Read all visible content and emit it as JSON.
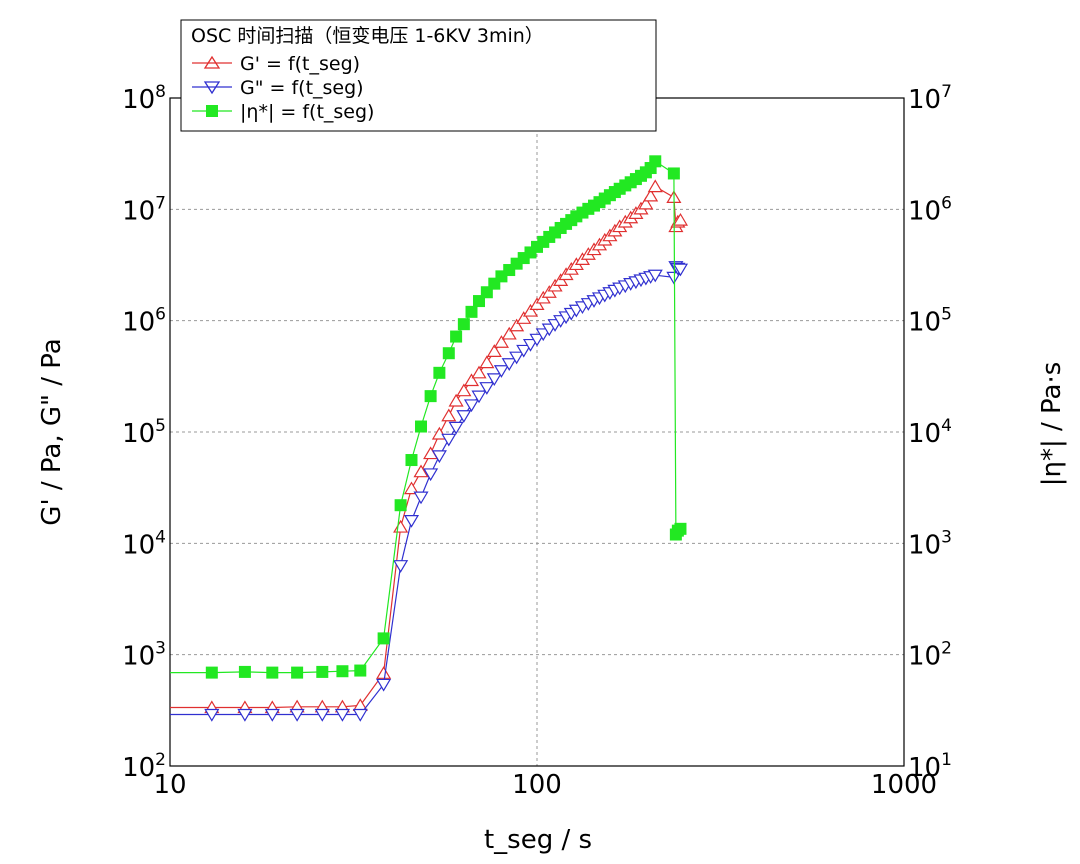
{
  "chart_data": {
    "type": "scatter",
    "title": "",
    "xlabel": "t_seg / s",
    "ylabel_left": "G' / Pa, G\" / Pa",
    "ylabel_right": "|η*| / Pa·s",
    "x_scale": "log",
    "y_scale": "log",
    "xlim": [
      10,
      1000
    ],
    "ylim_left": [
      100,
      100000000
    ],
    "ylim_right": [
      10,
      10000000
    ],
    "grid": true,
    "legend": {
      "placement": "top-left",
      "title": "OSC 时间扫描（恒变电压 1-6KV 3min）",
      "entries": [
        "G' = f(t_seg)",
        "G\" = f(t_seg)",
        "|η*| = f(t_seg)"
      ]
    },
    "x_ticks": [
      {
        "value": 10,
        "label": "10"
      },
      {
        "value": 100,
        "label": "100"
      },
      {
        "value": 1000,
        "label": "1000"
      }
    ],
    "y_left_ticks": [
      {
        "value": 100,
        "base": "10",
        "exp": "2"
      },
      {
        "value": 1000,
        "base": "10",
        "exp": "3"
      },
      {
        "value": 10000,
        "base": "10",
        "exp": "4"
      },
      {
        "value": 100000,
        "base": "10",
        "exp": "5"
      },
      {
        "value": 1000000,
        "base": "10",
        "exp": "6"
      },
      {
        "value": 10000000,
        "base": "10",
        "exp": "7"
      },
      {
        "value": 100000000,
        "base": "10",
        "exp": "8"
      }
    ],
    "y_right_ticks": [
      {
        "value": 10,
        "base": "10",
        "exp": "1"
      },
      {
        "value": 100,
        "base": "10",
        "exp": "2"
      },
      {
        "value": 1000,
        "base": "10",
        "exp": "3"
      },
      {
        "value": 10000,
        "base": "10",
        "exp": "4"
      },
      {
        "value": 100000,
        "base": "10",
        "exp": "5"
      },
      {
        "value": 1000000,
        "base": "10",
        "exp": "6"
      },
      {
        "value": 10000000,
        "base": "10",
        "exp": "7"
      }
    ],
    "series": [
      {
        "name": "G' = f(t_seg)",
        "axis": "left",
        "marker": "triangle-up",
        "color": "#e03030",
        "x": [
          13,
          16,
          19,
          22.2,
          26,
          29.5,
          33,
          38.2,
          42.5,
          45.5,
          48.3,
          51.3,
          54.2,
          57.5,
          60.2,
          63.2,
          66.3,
          69.5,
          73,
          76.5,
          80,
          84,
          88,
          92,
          96,
          100,
          104,
          108,
          112,
          116,
          120,
          124,
          128,
          133,
          138,
          143,
          148,
          153,
          158,
          163,
          168,
          174,
          180,
          186,
          192,
          198,
          204,
          210,
          236,
          239,
          242,
          246
        ],
        "y": [
          335,
          335,
          335,
          340,
          340,
          340,
          350,
          680,
          14000,
          31000,
          44000,
          64000,
          96000,
          140000,
          190000,
          235000,
          290000,
          340000,
          420000,
          530000,
          640000,
          760000,
          900000,
          1050000,
          1220000,
          1400000,
          1600000,
          1800000,
          2050000,
          2300000,
          2600000,
          2900000,
          3200000,
          3550000,
          3950000,
          4350000,
          4800000,
          5300000,
          5800000,
          6400000,
          7000000,
          7700000,
          8400000,
          9200000,
          10100000,
          11200000,
          13200000,
          16000000,
          12800000,
          7000000,
          7700000,
          8000000
        ]
      },
      {
        "name": "G\" = f(t_seg)",
        "axis": "left",
        "marker": "triangle-down",
        "color": "#3030d0",
        "x": [
          13,
          16,
          19,
          22.2,
          26,
          29.5,
          33,
          38.2,
          42.5,
          45.5,
          48.3,
          51.3,
          54.2,
          57.5,
          60.2,
          63.2,
          66.3,
          69.5,
          73,
          76.5,
          80,
          84,
          88,
          92,
          96,
          100,
          104,
          108,
          112,
          116,
          120,
          124,
          128,
          133,
          138,
          143,
          148,
          153,
          158,
          163,
          168,
          174,
          180,
          186,
          192,
          198,
          204,
          210,
          236,
          239,
          242,
          246
        ],
        "y": [
          290,
          290,
          290,
          290,
          290,
          290,
          290,
          540,
          6300,
          16000,
          26000,
          42000,
          61000,
          86000,
          110000,
          140000,
          175000,
          210000,
          250000,
          300000,
          355000,
          410000,
          470000,
          540000,
          610000,
          680000,
          760000,
          840000,
          920000,
          1000000,
          1080000,
          1160000,
          1240000,
          1330000,
          1420000,
          1510000,
          1600000,
          1690000,
          1780000,
          1870000,
          1960000,
          2050000,
          2150000,
          2230000,
          2320000,
          2400000,
          2480000,
          2560000,
          2450000,
          3050000,
          2950000,
          2900000
        ]
      },
      {
        "name": "|η*| = f(t_seg)",
        "axis": "right",
        "marker": "square",
        "color": "#22e822",
        "x": [
          13,
          16,
          19,
          22.2,
          26,
          29.5,
          33,
          38.2,
          42.5,
          45.5,
          48.3,
          51.3,
          54.2,
          57.5,
          60.2,
          63.2,
          66.3,
          69.5,
          73,
          76.5,
          80,
          84,
          88,
          92,
          96,
          100,
          104,
          108,
          112,
          116,
          120,
          124,
          128,
          133,
          138,
          143,
          148,
          153,
          158,
          163,
          168,
          174,
          180,
          186,
          192,
          198,
          204,
          210,
          236,
          239,
          242,
          246
        ],
        "y": [
          69,
          70,
          69,
          69,
          70,
          71,
          72,
          140,
          2200,
          5600,
          11200,
          21000,
          34000,
          51000,
          72000,
          93000,
          120000,
          150000,
          180000,
          215000,
          250000,
          285000,
          325000,
          365000,
          410000,
          460000,
          510000,
          565000,
          620000,
          680000,
          740000,
          800000,
          865000,
          935000,
          1010000,
          1080000,
          1160000,
          1250000,
          1340000,
          1430000,
          1530000,
          1640000,
          1750000,
          1870000,
          2000000,
          2150000,
          2350000,
          2700000,
          2100000,
          1200,
          1300,
          1350
        ]
      }
    ]
  }
}
